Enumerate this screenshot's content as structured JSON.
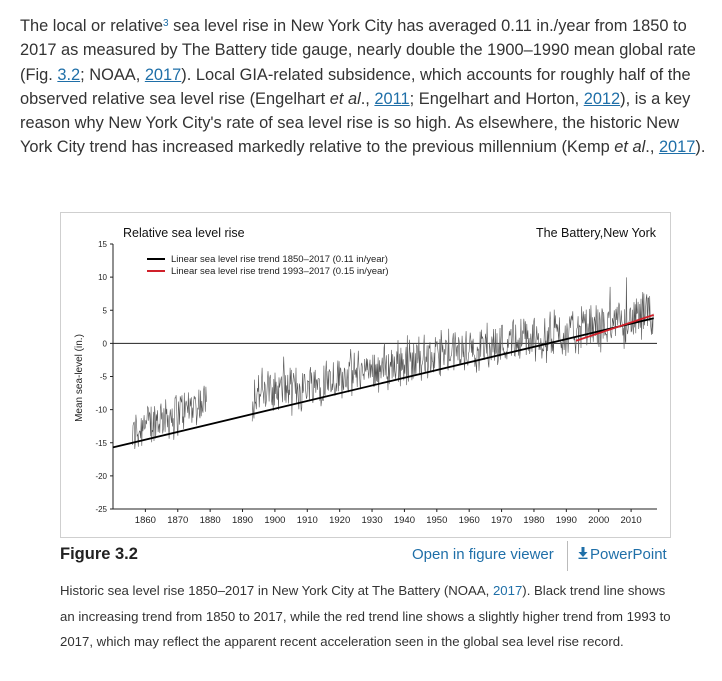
{
  "paragraph": {
    "t1": "The local or relative",
    "ref_sup": "3",
    "t2": " sea level rise in New York City has averaged 0.11 in./year from 1850 to 2017 as measured by The Battery tide gauge, nearly double the 1900–1990 mean global rate (Fig. ",
    "fig_link": "3.2",
    "t3": "; NOAA, ",
    "noaa_year": "2017",
    "t4": "). Local GIA-related subsidence, which accounts for roughly half of the observed relative sea level rise (Engelhart ",
    "etal1": "et al",
    "t5": "., ",
    "year2011": "2011",
    "t6": "; Engelhart and Horton, ",
    "year2012": "2012",
    "t7": "), is a key reason why New York City's rate of sea level rise is so high. As elsewhere, the historic New York City trend has increased markedly relative to the previous millennium (Kemp ",
    "etal2": "et al",
    "t8": "., ",
    "year2017b": "2017",
    "t9": ")."
  },
  "figure": {
    "label": "Figure 3.2",
    "open_viewer": "Open in figure viewer",
    "powerpoint": "PowerPoint",
    "caption_t1": "Historic sea level rise 1850–2017 in New York City at The Battery (NOAA, ",
    "caption_year": "2017",
    "caption_t2": "). Black trend line shows an increasing trend from 1850 to 2017, while the red trend line shows a slightly higher trend from 1993 to 2017, which may reflect the apparent recent acceleration seen in the global sea level rise record."
  },
  "chart_data": {
    "type": "line",
    "title": "Relative sea level rise",
    "location": "The Battery,New York",
    "ylabel": "Mean sea-level (in.)",
    "xlabel": "",
    "xlim": [
      1850,
      2018
    ],
    "ylim": [
      -25,
      15
    ],
    "x_ticks": [
      1860,
      1870,
      1880,
      1890,
      1900,
      1910,
      1920,
      1930,
      1940,
      1950,
      1960,
      1970,
      1980,
      1990,
      2000,
      2010
    ],
    "y_ticks": [
      15,
      10,
      5,
      0,
      -5,
      -10,
      -15,
      -20,
      -25
    ],
    "legend_position": "top-left",
    "grid": false,
    "colors": {
      "observed": "#555555",
      "trend_1850": "#000000",
      "trend_1993": "#d0202a"
    },
    "series": [
      {
        "kind": "observed",
        "segments": [
          {
            "x": [
              1856,
              1858,
              1860,
              1862,
              1864,
              1866,
              1868,
              1870,
              1872,
              1874,
              1876,
              1878,
              1879
            ],
            "y": [
              -14.0,
              -13.0,
              -12.5,
              -12.0,
              -11.5,
              -11.2,
              -10.8,
              -10.5,
              -10.2,
              -9.7,
              -9.5,
              -9.0,
              -8.7
            ]
          },
          {
            "x": [
              1893,
              1895,
              1900,
              1905,
              1910,
              1915,
              1920,
              1925,
              1930,
              1935,
              1940,
              1945,
              1950,
              1955,
              1960,
              1965,
              1970,
              1975,
              1980,
              1985,
              1990,
              1995,
              2000,
              2005,
              2010,
              2015,
              2017
            ],
            "y": [
              -8.2,
              -7.5,
              -7.0,
              -7.0,
              -6.5,
              -5.5,
              -5.0,
              -4.5,
              -4.0,
              -3.5,
              -3.0,
              -2.5,
              -2.0,
              -1.5,
              -1.0,
              -0.5,
              0.0,
              0.5,
              0.5,
              1.0,
              1.5,
              2.0,
              2.5,
              3.0,
              3.5,
              4.0,
              4.2
            ]
          }
        ]
      },
      {
        "kind": "trend",
        "name": "Linear sea level rise trend 1850–2017 (0.11 in/year)",
        "x": [
          1850,
          2017
        ],
        "y": [
          -15.7,
          3.8
        ]
      },
      {
        "kind": "trend",
        "name": "Linear sea level rise trend 1993–2017 (0.15 in/year)",
        "x": [
          1993,
          2017
        ],
        "y": [
          0.4,
          4.3
        ]
      }
    ]
  }
}
